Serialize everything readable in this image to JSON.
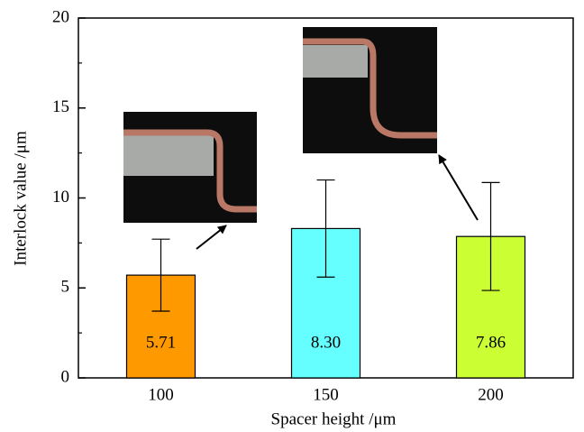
{
  "chart_data": {
    "type": "bar",
    "x_label": "Spacer height /μm",
    "y_label": "Interlock value /μm",
    "categories": [
      "100",
      "150",
      "200"
    ],
    "values": [
      5.71,
      8.3,
      7.86
    ],
    "value_labels": [
      "5.71",
      "8.30",
      "7.86"
    ],
    "errors": [
      2.0,
      2.7,
      3.0
    ],
    "colors": [
      "#ff9900",
      "#66ffff",
      "#ccff33"
    ],
    "ylim": [
      0,
      20
    ],
    "yticks": [
      0,
      5,
      10,
      15,
      20
    ]
  }
}
